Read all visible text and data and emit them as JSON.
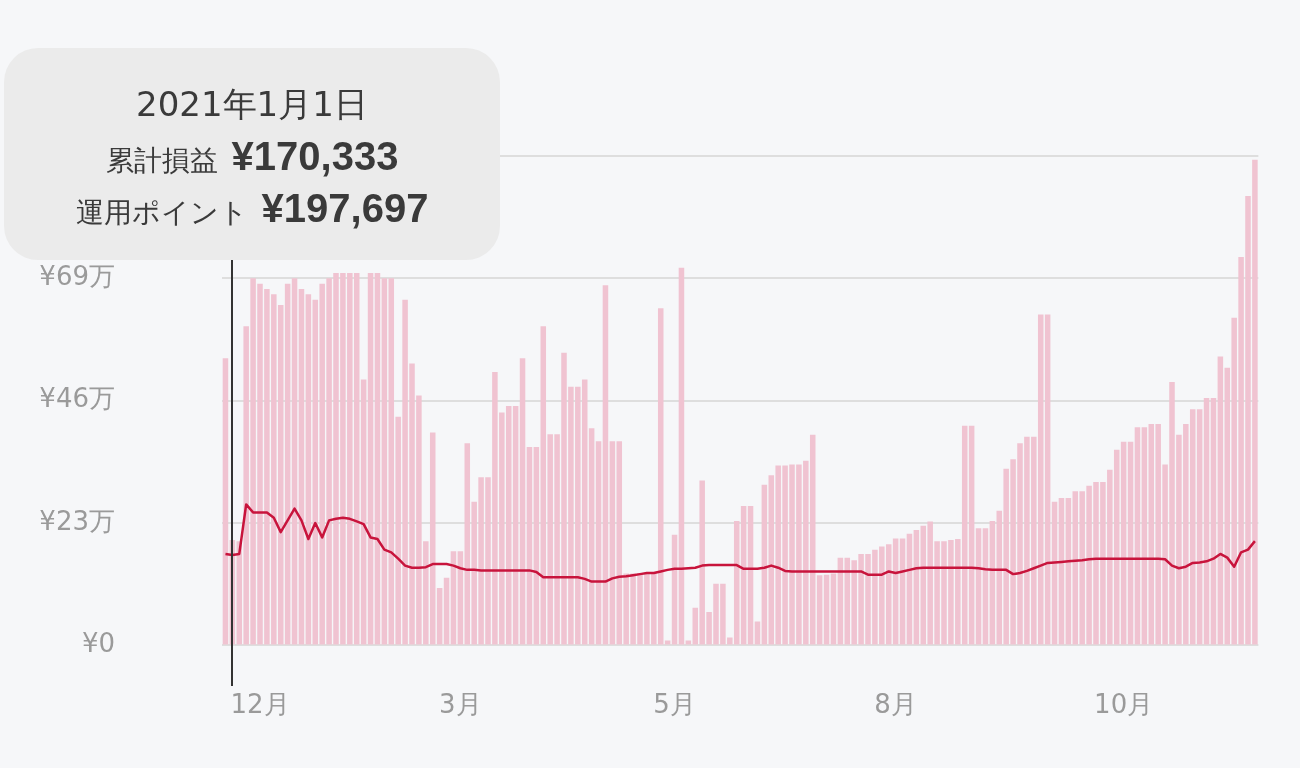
{
  "chart_data": {
    "type": "bar",
    "categories": [
      null,
      null,
      null,
      null,
      null,
      "12月",
      null,
      null,
      null,
      null,
      null,
      null,
      null,
      null,
      null,
      null,
      null,
      null,
      null,
      null,
      null,
      null,
      null,
      null,
      null,
      null,
      null,
      null,
      null,
      null,
      null,
      null,
      null,
      null,
      "3月",
      null,
      null,
      null,
      null,
      null,
      null,
      null,
      null,
      null,
      null,
      null,
      null,
      null,
      null,
      null,
      null,
      null,
      null,
      null,
      null,
      null,
      null,
      null,
      null,
      null,
      null,
      null,
      null,
      null,
      null,
      "5月",
      null,
      null,
      null,
      null,
      null,
      null,
      null,
      null,
      null,
      null,
      null,
      null,
      null,
      null,
      null,
      null,
      null,
      null,
      null,
      null,
      null,
      null,
      null,
      null,
      null,
      null,
      null,
      null,
      null,
      null,
      null,
      "8月",
      null,
      null,
      null,
      null,
      null,
      null,
      null,
      null,
      null,
      null,
      null,
      null,
      null,
      null,
      null,
      null,
      null,
      null,
      null,
      null,
      null,
      null,
      null,
      null,
      null,
      null,
      null,
      null,
      null,
      null,
      null,
      null,
      "10月",
      null,
      null,
      null,
      null,
      null,
      null,
      null,
      null,
      null,
      null,
      null,
      null,
      null,
      null,
      null,
      null,
      null,
      null,
      null
    ],
    "series": [
      {
        "type": "bar",
        "color": "#f0c3d1",
        "values": [
          54,
          19.8,
          19.6,
          60,
          69,
          68,
          67,
          66,
          64,
          68,
          69,
          67,
          66,
          65,
          68,
          69,
          70,
          70,
          70,
          70,
          50,
          70,
          70,
          69,
          69,
          43,
          65,
          53,
          47,
          19.6,
          40,
          10.8,
          12.7,
          17.7,
          17.7,
          38,
          27,
          31.6,
          31.6,
          51.4,
          43.8,
          45,
          45,
          54,
          37.3,
          37.3,
          60,
          39.7,
          39.7,
          55,
          48.6,
          48.6,
          50,
          40.8,
          38.4,
          67.7,
          38.4,
          38.4,
          13.5,
          13.5,
          13.6,
          13.7,
          13.8,
          63.4,
          0.9,
          20.8,
          71,
          0.9,
          7.1,
          31,
          6.3,
          11.6,
          11.6,
          1.5,
          23.4,
          26.2,
          26.2,
          4.5,
          30.2,
          32,
          33.8,
          33.8,
          34,
          34,
          34.7,
          39.6,
          13.2,
          13.3,
          13.5,
          16.5,
          16.5,
          16,
          17.2,
          17.2,
          18,
          18.6,
          19,
          20.1,
          20.1,
          21,
          21.7,
          22.5,
          23.3,
          19.6,
          19.6,
          19.8,
          20,
          41.3,
          41.3,
          22,
          22,
          23.4,
          25.3,
          33.2,
          35,
          38,
          39.2,
          39.2,
          62.2,
          62.2,
          27,
          27.7,
          27.7,
          29,
          29,
          30,
          30.7,
          30.7,
          33,
          36.8,
          38.3,
          38.3,
          41,
          41,
          41.6,
          41.6,
          34,
          49.5,
          39.6,
          41.6,
          44.4,
          44.4,
          46.5,
          46.5,
          54.3,
          52.2,
          61.6,
          73,
          84.5,
          91.3
        ]
      },
      {
        "type": "line",
        "color": "#c8143c",
        "values": [
          17.2,
          17.0,
          17.2,
          26.5,
          25,
          25,
          25,
          24,
          21.3,
          23.5,
          25.7,
          23.5,
          20,
          23,
          20.3,
          23.5,
          23.8,
          24,
          23.8,
          23.3,
          22.8,
          20.3,
          20,
          18,
          17.5,
          16.3,
          15,
          14.6,
          14.6,
          14.7,
          15.3,
          15.3,
          15.3,
          15,
          14.5,
          14.2,
          14.2,
          14.1,
          14.1,
          14.1,
          14.1,
          14.1,
          14.1,
          14.1,
          14.1,
          13.8,
          12.8,
          12.8,
          12.8,
          12.8,
          12.8,
          12.8,
          12.5,
          12,
          12,
          12,
          12.6,
          12.9,
          13,
          13.2,
          13.4,
          13.6,
          13.6,
          13.9,
          14.2,
          14.4,
          14.4,
          14.5,
          14.6,
          15,
          15.1,
          15.1,
          15.1,
          15.1,
          15.1,
          14.4,
          14.4,
          14.4,
          14.6,
          15,
          14.6,
          14,
          13.9,
          13.9,
          13.9,
          13.9,
          13.9,
          13.9,
          13.9,
          13.9,
          13.9,
          13.9,
          13.9,
          13.3,
          13.3,
          13.3,
          13.9,
          13.6,
          13.9,
          14.2,
          14.5,
          14.6,
          14.6,
          14.6,
          14.6,
          14.6,
          14.6,
          14.6,
          14.6,
          14.5,
          14.3,
          14.2,
          14.2,
          14.2,
          13.4,
          13.6,
          14,
          14.5,
          15,
          15.5,
          15.6,
          15.7,
          15.8,
          15.9,
          16,
          16.2,
          16.3,
          16.3,
          16.3,
          16.3,
          16.3,
          16.3,
          16.3,
          16.3,
          16.3,
          16.3,
          16.2,
          15,
          14.5,
          14.8,
          15.5,
          15.6,
          15.8,
          16.3,
          17.2,
          16.5,
          14.8,
          17.5,
          18,
          19.6
        ]
      }
    ],
    "ylim": [
      0,
      92
    ],
    "yticks": [
      {
        "value": 0,
        "label": "¥0"
      },
      {
        "value": 23,
        "label": "¥23万"
      },
      {
        "value": 46,
        "label": "¥46万"
      },
      {
        "value": 69,
        "label": "¥69万"
      },
      {
        "value": 92,
        "label": null
      }
    ],
    "grid": "y",
    "legend": false,
    "marker": "none",
    "line_style": "solid",
    "annotations": [
      "2021年1月1日",
      "累計損益",
      "¥170,333",
      "運用ポイント",
      "¥197,697"
    ]
  }
}
